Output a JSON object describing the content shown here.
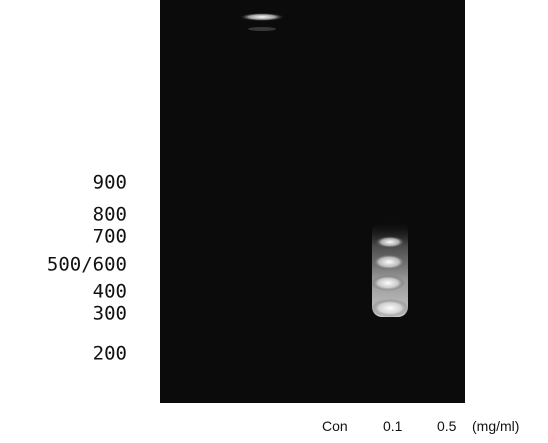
{
  "markers": [
    "900",
    "800",
    "700",
    "500/600",
    "400",
    "300",
    "200"
  ],
  "lanes": [
    "Con",
    "0.1",
    "0.5"
  ],
  "unit": "(mg/ml)"
}
